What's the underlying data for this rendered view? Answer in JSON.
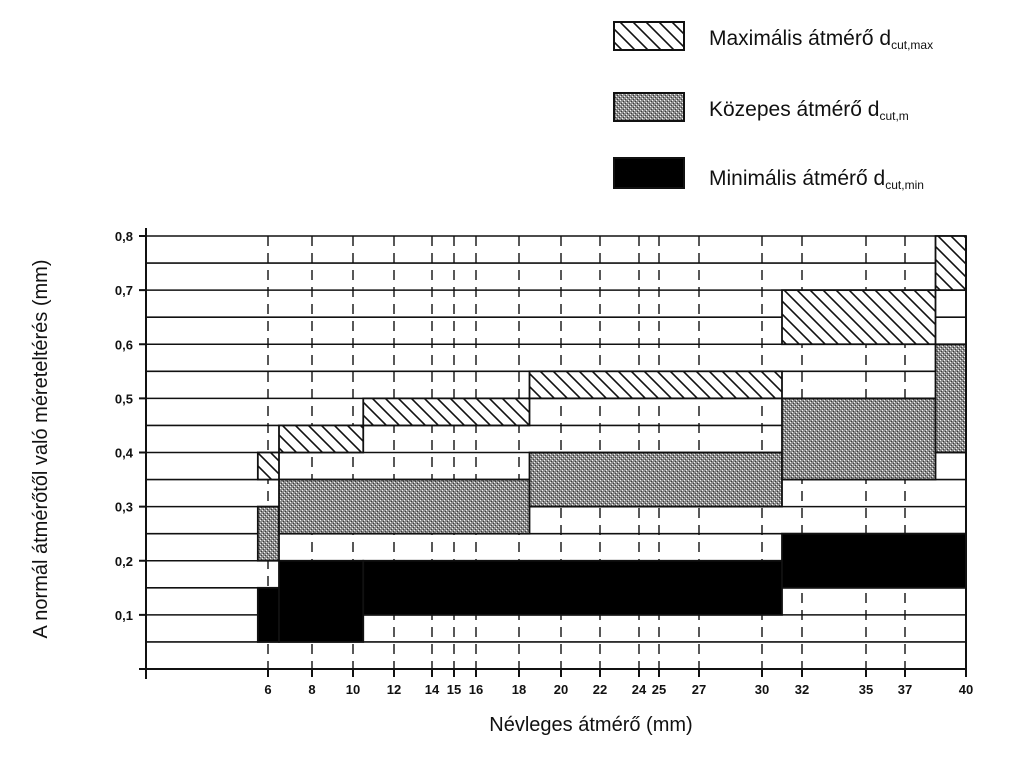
{
  "chart_data": {
    "type": "bar",
    "xlabel": "Névleges átmérő (mm)",
    "ylabel": "A normál átmérőtől való méreteltérés (mm)",
    "x_ticks": [
      6,
      8,
      10,
      12,
      14,
      15,
      16,
      18,
      20,
      22,
      24,
      25,
      27,
      30,
      32,
      35,
      37,
      40
    ],
    "y_ticks": [
      0.1,
      0.2,
      0.3,
      0.4,
      0.5,
      0.6,
      0.7,
      0.8
    ],
    "ylim": [
      0,
      0.8
    ],
    "legend_position": "top-right",
    "series": [
      {
        "key": "max",
        "label": "Maximális átmérő",
        "symbol": "d",
        "subscript": "cut,max",
        "pattern": "hatched",
        "bands": [
          {
            "x": [
              5.5,
              6.5
            ],
            "y": [
              0.35,
              0.4
            ]
          },
          {
            "x": [
              6.5,
              10.5
            ],
            "y": [
              0.4,
              0.45
            ]
          },
          {
            "x": [
              10.5,
              18.5
            ],
            "y": [
              0.45,
              0.5
            ]
          },
          {
            "x": [
              18.5,
              31
            ],
            "y": [
              0.5,
              0.55
            ]
          },
          {
            "x": [
              31,
              38.5
            ],
            "y": [
              0.6,
              0.7
            ]
          },
          {
            "x": [
              38.5,
              40
            ],
            "y": [
              0.7,
              0.8
            ]
          }
        ]
      },
      {
        "key": "mid",
        "label": "Közepes átmérő",
        "symbol": "d",
        "subscript": "cut,m",
        "pattern": "dotted-gray",
        "bands": [
          {
            "x": [
              5.5,
              6.5
            ],
            "y": [
              0.2,
              0.3
            ]
          },
          {
            "x": [
              6.5,
              18.5
            ],
            "y": [
              0.25,
              0.35
            ]
          },
          {
            "x": [
              18.5,
              31
            ],
            "y": [
              0.3,
              0.4
            ]
          },
          {
            "x": [
              31,
              38.5
            ],
            "y": [
              0.35,
              0.5
            ]
          },
          {
            "x": [
              38.5,
              40
            ],
            "y": [
              0.4,
              0.6
            ]
          }
        ]
      },
      {
        "key": "min",
        "label": "Minimális átmérő",
        "symbol": "d",
        "subscript": "cut,min",
        "pattern": "solid-black",
        "bands": [
          {
            "x": [
              5.5,
              6.5
            ],
            "y": [
              0.05,
              0.15
            ]
          },
          {
            "x": [
              6.5,
              10.5
            ],
            "y": [
              0.05,
              0.2
            ]
          },
          {
            "x": [
              10.5,
              31
            ],
            "y": [
              0.1,
              0.2
            ]
          },
          {
            "x": [
              31,
              40
            ],
            "y": [
              0.15,
              0.25
            ]
          }
        ]
      }
    ]
  },
  "colors": {
    "ink": "#111111",
    "dotted_fill": "#8c8c8c",
    "solid_fill": "#000000",
    "background": "#ffffff"
  }
}
